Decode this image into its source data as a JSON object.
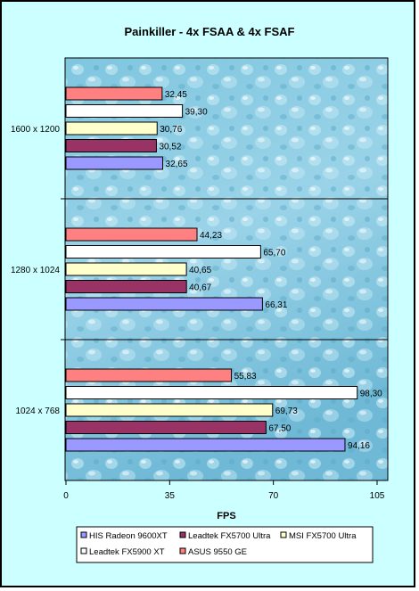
{
  "chart_data": {
    "type": "bar",
    "orientation": "horizontal",
    "title": "Painkiller - 4x FSAA & 4x FSAF",
    "xlabel": "FPS",
    "ylabel": "",
    "xlim": [
      0,
      105
    ],
    "xticks": [
      "0",
      "35",
      "70",
      "105"
    ],
    "categories": [
      "1600 x 1200",
      "1280 x 1024",
      "1024 x 768"
    ],
    "series": [
      {
        "name": "HIS Radeon 9600XT",
        "color": "#9999ff",
        "values": [
          32.65,
          66.31,
          94.16
        ],
        "labels": [
          "32,65",
          "66,31",
          "94,16"
        ]
      },
      {
        "name": "Leadtek FX5700 Ultra",
        "color": "#993366",
        "values": [
          30.52,
          40.67,
          67.5
        ],
        "labels": [
          "30,52",
          "40,67",
          "67,50"
        ]
      },
      {
        "name": "MSI FX5700 Ultra",
        "color": "#ffffcc",
        "values": [
          30.76,
          40.65,
          69.73
        ],
        "labels": [
          "30,76",
          "40,65",
          "69,73"
        ]
      },
      {
        "name": "Leadtek FX5900 XT",
        "color": "#ffffff",
        "values": [
          39.3,
          65.7,
          98.3
        ],
        "labels": [
          "39,30",
          "65,70",
          "98,30"
        ]
      },
      {
        "name": "ASUS 9550 GE",
        "color": "#ff8080",
        "values": [
          32.45,
          44.23,
          55.83
        ],
        "labels": [
          "32,45",
          "44,23",
          "55,83"
        ]
      }
    ],
    "grid": false,
    "legend_position": "bottom",
    "plot_background": "water droplets"
  }
}
